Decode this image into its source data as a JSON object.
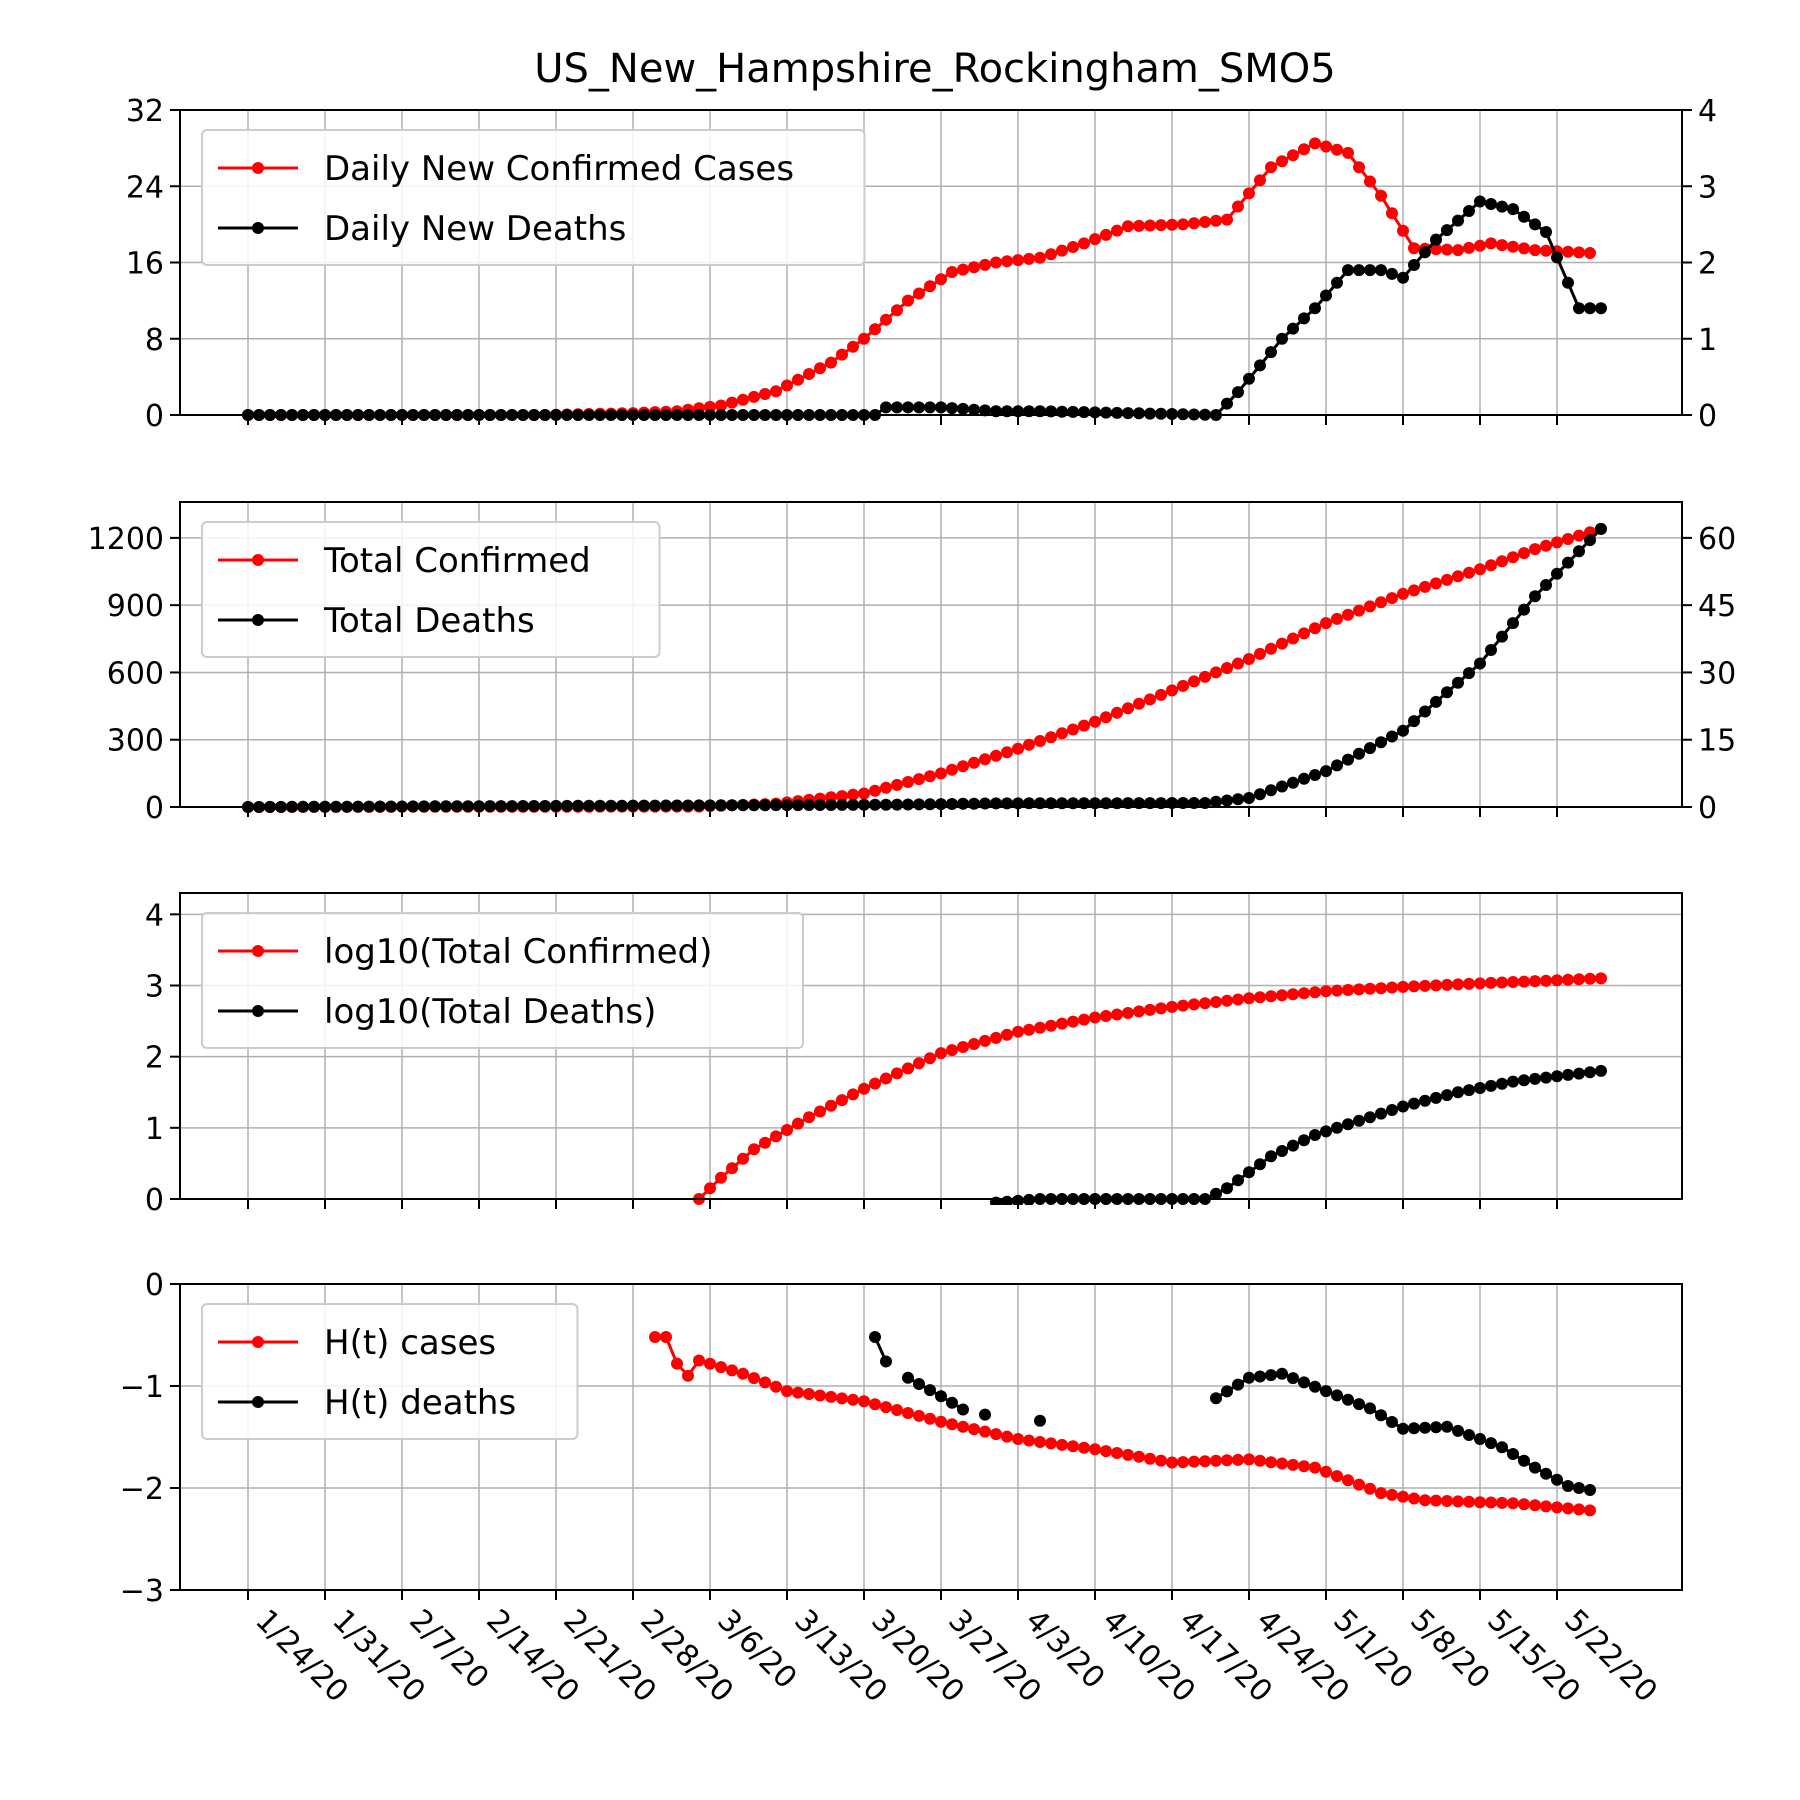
{
  "title": "US_New_Hampshire_Rockingham_SMO5",
  "colors": {
    "cases": "#ff0000",
    "deaths": "#000000",
    "grid": "#b0b0b0"
  },
  "chart_data": {
    "type": "line",
    "title": "US_New_Hampshire_Rockingham_SMO5",
    "x_tick_labels": [
      "1/24/20",
      "1/31/20",
      "2/7/20",
      "2/14/20",
      "2/21/20",
      "2/28/20",
      "3/6/20",
      "3/13/20",
      "3/20/20",
      "3/27/20",
      "4/3/20",
      "4/10/20",
      "4/17/20",
      "4/24/20",
      "5/1/20",
      "5/8/20",
      "5/15/20",
      "5/22/20"
    ],
    "x_range": [
      "1/24/20",
      "5/26/20"
    ],
    "grid": true,
    "legend_position": "top-left",
    "panels": [
      {
        "id": "daily",
        "legend": [
          "Daily New Confirmed Cases",
          "Daily New Deaths"
        ],
        "left_axis": {
          "ticks": [
            "0",
            "8",
            "16",
            "24",
            "32"
          ],
          "range": [
            0,
            32
          ]
        },
        "right_axis": {
          "ticks": [
            "0",
            "1",
            "2",
            "3",
            "4"
          ],
          "range": [
            0,
            4
          ]
        },
        "series": [
          {
            "name": "Daily New Confirmed Cases",
            "axis": "left",
            "color": "#ff0000",
            "points": [
              [
                "1/24/20",
                0
              ],
              [
                "2/20/20",
                0
              ],
              [
                "2/28/20",
                0.2
              ],
              [
                "3/3/20",
                0.4
              ],
              [
                "3/7/20",
                1
              ],
              [
                "3/12/20",
                2.5
              ],
              [
                "3/17/20",
                5.5
              ],
              [
                "3/20/20",
                8
              ],
              [
                "3/24/20",
                12
              ],
              [
                "3/28/20",
                15
              ],
              [
                "4/1/20",
                16
              ],
              [
                "4/5/20",
                16.5
              ],
              [
                "4/9/20",
                18
              ],
              [
                "4/13/20",
                19.8
              ],
              [
                "4/18/20",
                20
              ],
              [
                "4/22/20",
                20.5
              ],
              [
                "4/26/20",
                26
              ],
              [
                "4/30/20",
                28.5
              ],
              [
                "5/3/20",
                27.5
              ],
              [
                "5/6/20",
                23
              ],
              [
                "5/9/20",
                17.5
              ],
              [
                "5/13/20",
                17.3
              ],
              [
                "5/16/20",
                18
              ],
              [
                "5/20/20",
                17.3
              ],
              [
                "5/25/20",
                17
              ]
            ]
          },
          {
            "name": "Daily New Deaths",
            "axis": "right",
            "color": "#000000",
            "points": [
              [
                "1/24/20",
                0
              ],
              [
                "3/21/20",
                0
              ],
              [
                "3/22/20",
                0.1
              ],
              [
                "3/27/20",
                0.1
              ],
              [
                "4/1/20",
                0.05
              ],
              [
                "4/5/20",
                0.05
              ],
              [
                "4/21/20",
                0
              ],
              [
                "4/23/20",
                0.3
              ],
              [
                "4/27/20",
                1
              ],
              [
                "4/30/20",
                1.4
              ],
              [
                "5/3/20",
                1.9
              ],
              [
                "5/6/20",
                1.9
              ],
              [
                "5/8/20",
                1.8
              ],
              [
                "5/11/20",
                2.3
              ],
              [
                "5/15/20",
                2.8
              ],
              [
                "5/18/20",
                2.7
              ],
              [
                "5/21/20",
                2.4
              ],
              [
                "5/24/20",
                1.4
              ],
              [
                "5/26/20",
                1.4
              ]
            ]
          }
        ]
      },
      {
        "id": "total",
        "legend": [
          "Total Confirmed",
          "Total Deaths"
        ],
        "left_axis": {
          "ticks": [
            "0",
            "300",
            "600",
            "900",
            "1200"
          ],
          "range": [
            0,
            1360
          ]
        },
        "right_axis": {
          "ticks": [
            "0",
            "15",
            "30",
            "45",
            "60"
          ],
          "range": [
            0,
            68
          ]
        },
        "series": [
          {
            "name": "Total Confirmed",
            "axis": "left",
            "color": "#ff0000",
            "points": [
              [
                "1/24/20",
                0
              ],
              [
                "3/5/20",
                2
              ],
              [
                "3/12/20",
                15
              ],
              [
                "3/20/20",
                60
              ],
              [
                "3/27/20",
                150
              ],
              [
                "4/3/20",
                260
              ],
              [
                "4/10/20",
                380
              ],
              [
                "4/17/20",
                520
              ],
              [
                "4/24/20",
                660
              ],
              [
                "5/1/20",
                820
              ],
              [
                "5/8/20",
                950
              ],
              [
                "5/15/20",
                1060
              ],
              [
                "5/20/20",
                1150
              ],
              [
                "5/26/20",
                1240
              ]
            ]
          },
          {
            "name": "Total Deaths",
            "axis": "right",
            "color": "#000000",
            "points": [
              [
                "1/24/20",
                0
              ],
              [
                "3/22/20",
                0.5
              ],
              [
                "4/1/20",
                0.8
              ],
              [
                "4/20/20",
                0.9
              ],
              [
                "4/24/20",
                2
              ],
              [
                "5/1/20",
                8
              ],
              [
                "5/8/20",
                17
              ],
              [
                "5/15/20",
                32
              ],
              [
                "5/20/20",
                47
              ],
              [
                "5/26/20",
                62
              ]
            ]
          }
        ]
      },
      {
        "id": "log",
        "legend": [
          "log10(Total Confirmed)",
          "log10(Total Deaths)"
        ],
        "left_axis": {
          "ticks": [
            "0",
            "1",
            "2",
            "3",
            "4"
          ],
          "range": [
            0,
            4.3
          ]
        },
        "series": [
          {
            "name": "log10(Total Confirmed)",
            "axis": "left",
            "color": "#ff0000",
            "points": [
              [
                "3/5/20",
                0
              ],
              [
                "3/7/20",
                0.3
              ],
              [
                "3/10/20",
                0.7
              ],
              [
                "3/15/20",
                1.15
              ],
              [
                "3/20/20",
                1.55
              ],
              [
                "3/27/20",
                2.05
              ],
              [
                "4/3/20",
                2.35
              ],
              [
                "4/10/20",
                2.55
              ],
              [
                "4/17/20",
                2.7
              ],
              [
                "4/24/20",
                2.82
              ],
              [
                "5/1/20",
                2.92
              ],
              [
                "5/8/20",
                2.98
              ],
              [
                "5/15/20",
                3.03
              ],
              [
                "5/26/20",
                3.1
              ]
            ]
          },
          {
            "name": "log10(Total Deaths)",
            "axis": "left",
            "color": "#000000",
            "points": [
              [
                "4/1/20",
                -0.05
              ],
              [
                "4/5/20",
                0
              ],
              [
                "4/20/20",
                0
              ],
              [
                "4/22/20",
                0.15
              ],
              [
                "4/26/20",
                0.6
              ],
              [
                "4/30/20",
                0.9
              ],
              [
                "5/4/20",
                1.1
              ],
              [
                "5/8/20",
                1.3
              ],
              [
                "5/13/20",
                1.5
              ],
              [
                "5/18/20",
                1.65
              ],
              [
                "5/26/20",
                1.8
              ]
            ]
          }
        ]
      },
      {
        "id": "hurst",
        "legend": [
          "H(t) cases",
          "H(t) deaths"
        ],
        "left_axis": {
          "ticks": [
            "0",
            "−1",
            "−2",
            "−3"
          ],
          "range": [
            -3,
            0
          ]
        },
        "series": [
          {
            "name": "H(t) cases",
            "axis": "left",
            "color": "#ff0000",
            "points": [
              [
                "3/1/20",
                -0.52
              ],
              [
                "3/2/20",
                -0.52
              ],
              [
                "3/3/20",
                -0.78
              ],
              [
                "3/4/20",
                -0.9
              ],
              [
                "3/5/20",
                -0.75
              ],
              [
                "3/9/20",
                -0.88
              ],
              [
                "3/13/20",
                -1.05
              ],
              [
                "3/20/20",
                -1.15
              ],
              [
                "3/27/20",
                -1.35
              ],
              [
                "4/3/20",
                -1.52
              ],
              [
                "4/10/20",
                -1.62
              ],
              [
                "4/17/20",
                -1.75
              ],
              [
                "4/24/20",
                -1.72
              ],
              [
                "4/30/20",
                -1.8
              ],
              [
                "5/6/20",
                -2.05
              ],
              [
                "5/10/20",
                -2.12
              ],
              [
                "5/18/20",
                -2.15
              ],
              [
                "5/25/20",
                -2.22
              ]
            ]
          },
          {
            "name": "H(t) deaths",
            "axis": "left",
            "color": "#000000",
            "segments": [
              [
                [
                  "3/21/20",
                  -0.52
                ],
                [
                  "3/22/20",
                  -0.76
                ]
              ],
              [
                [
                  "3/24/20",
                  -0.92
                ],
                [
                  "3/27/20",
                  -1.1
                ],
                [
                  "3/29/20",
                  -1.23
                ]
              ],
              [
                [
                  "3/31/20",
                  -1.28
                ]
              ],
              [
                [
                  "4/5/20",
                  -1.34
                ]
              ],
              [
                [
                  "4/21/20",
                  -1.12
                ],
                [
                  "4/24/20",
                  -0.92
                ],
                [
                  "4/27/20",
                  -0.88
                ],
                [
                  "5/1/20",
                  -1.05
                ],
                [
                  "5/5/20",
                  -1.22
                ],
                [
                  "5/8/20",
                  -1.42
                ],
                [
                  "5/12/20",
                  -1.4
                ],
                [
                  "5/17/20",
                  -1.6
                ],
                [
                  "5/20/20",
                  -1.8
                ],
                [
                  "5/23/20",
                  -1.98
                ],
                [
                  "5/25/20",
                  -2.02
                ]
              ]
            ]
          }
        ]
      }
    ]
  }
}
